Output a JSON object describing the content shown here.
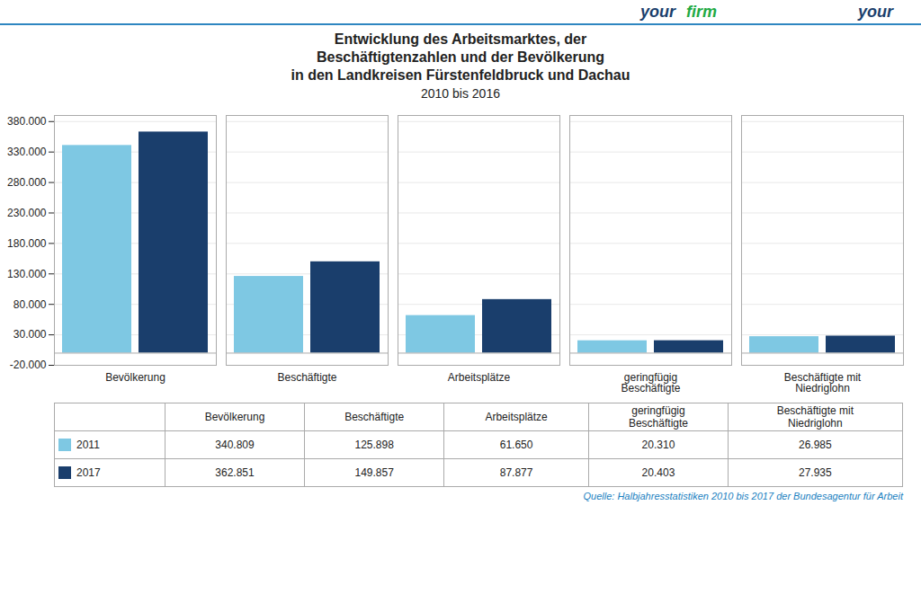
{
  "chart_data": {
    "type": "bar",
    "title": "Entwicklung des Arbeitsmarktes, der\nBeschäftigtenzahlen und der Bevölkerung\nin den Landkreisen Fürstenfeldbruck und Dachau",
    "subtitle": "2010 bis 2016",
    "categories": [
      "Bevölkerung",
      "Beschäftigte",
      "Arbeitsplätze",
      "geringfügig\nBeschäftigte",
      "Beschäftigte mit\nNiedriglohn"
    ],
    "series": [
      {
        "name": "2011",
        "color": "#7EC8E3",
        "values": [
          340809,
          125898,
          61650,
          20310,
          26985
        ],
        "value_labels": [
          "340.809",
          "125.898",
          "61.650",
          "20.310",
          "26.985"
        ]
      },
      {
        "name": "2017",
        "color": "#1A3E6C",
        "values": [
          362851,
          149857,
          87877,
          20403,
          27935
        ],
        "value_labels": [
          "362.851",
          "149.857",
          "87.877",
          "20.403",
          "27.935"
        ]
      }
    ],
    "ylim": [
      -20000,
      390000
    ],
    "yticks": [
      {
        "value": -20000,
        "label": "-20.000"
      },
      {
        "value": 30000,
        "label": "30.000"
      },
      {
        "value": 80000,
        "label": "80.000"
      },
      {
        "value": 130000,
        "label": "130.000"
      },
      {
        "value": 180000,
        "label": "180.000"
      },
      {
        "value": 230000,
        "label": "230.000"
      },
      {
        "value": 280000,
        "label": "280.000"
      },
      {
        "value": 330000,
        "label": "330.000"
      },
      {
        "value": 380000,
        "label": "380.000"
      }
    ],
    "grid": true,
    "legend": "bottom",
    "annotations": [
      {
        "text": "your",
        "color": "#1A3E6C"
      },
      {
        "text": "firm",
        "color": "#22AA44"
      },
      {
        "text": "your",
        "color": "#1A3E6C"
      },
      {
        "text": "Quelle: Halbjahresstatistiken 2010 bis 2017 der Bundesagentur für Arbeit",
        "color": "#1A7FBF"
      }
    ]
  }
}
